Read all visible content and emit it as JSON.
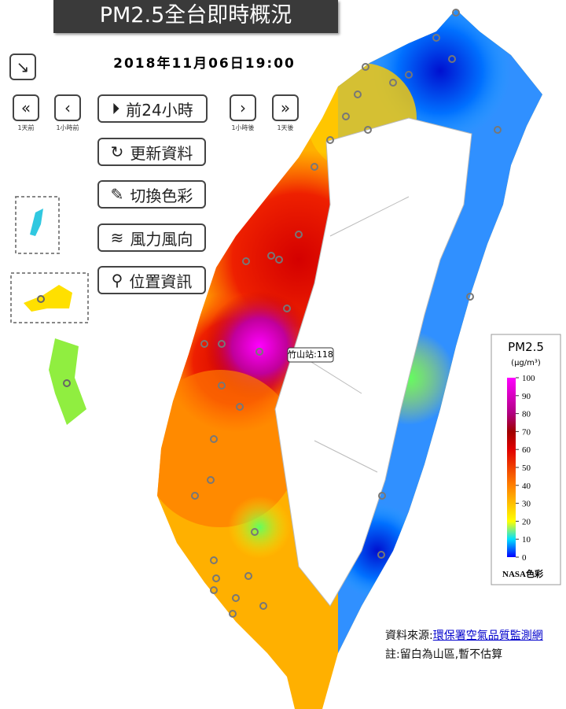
{
  "header": {
    "title": "PM2.5全台即時概況",
    "datetime": "2018年11月06日19:00"
  },
  "nav": {
    "day_back": "1天前",
    "hour_back": "1小時前",
    "hour_forward": "1小時後",
    "day_forward": "1天後"
  },
  "buttons": [
    "前24小時",
    "更新資料",
    "切換色彩",
    "風力風向",
    "位置資訊"
  ],
  "tooltip": "竹山站:118",
  "legend": {
    "title": "PM2.5",
    "unit": "(μg/m³)",
    "ticks": [
      100,
      90,
      80,
      70,
      60,
      50,
      40,
      30,
      20,
      10,
      0
    ],
    "caption": "NASA色彩"
  },
  "footer": {
    "source_label": "資料來源:",
    "source_link": "環保署空氣品質監測網",
    "note": "註:留白為山區,暫不估算"
  }
}
